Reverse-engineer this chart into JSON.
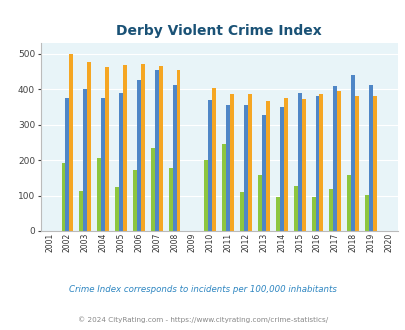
{
  "title": "Derby Violent Crime Index",
  "years": [
    2001,
    2002,
    2003,
    2004,
    2005,
    2006,
    2007,
    2008,
    2009,
    2010,
    2011,
    2012,
    2013,
    2014,
    2015,
    2016,
    2017,
    2018,
    2019,
    2020
  ],
  "derby": [
    0,
    192,
    113,
    205,
    124,
    172,
    234,
    178,
    0,
    200,
    245,
    109,
    158,
    97,
    126,
    97,
    118,
    157,
    102,
    0
  ],
  "kansas": [
    0,
    376,
    400,
    376,
    390,
    425,
    455,
    410,
    0,
    370,
    355,
    355,
    328,
    349,
    388,
    380,
    408,
    440,
    410,
    0
  ],
  "national": [
    0,
    498,
    477,
    463,
    468,
    470,
    465,
    455,
    0,
    404,
    387,
    387,
    367,
    376,
    373,
    386,
    394,
    379,
    379,
    0
  ],
  "derby_color": "#8dc63f",
  "kansas_color": "#4f86c6",
  "national_color": "#f5a623",
  "plot_bg": "#e8f4f8",
  "ylim": [
    0,
    530
  ],
  "yticks": [
    0,
    100,
    200,
    300,
    400,
    500
  ],
  "subtitle": "Crime Index corresponds to incidents per 100,000 inhabitants",
  "footer": "© 2024 CityRating.com - https://www.cityrating.com/crime-statistics/",
  "title_color": "#1a5276",
  "subtitle_color": "#2e86c1",
  "footer_color": "#888888",
  "active_years": [
    2002,
    2003,
    2004,
    2005,
    2006,
    2007,
    2008,
    2010,
    2011,
    2012,
    2013,
    2014,
    2015,
    2016,
    2017,
    2018,
    2019
  ],
  "bar_width": 0.22
}
